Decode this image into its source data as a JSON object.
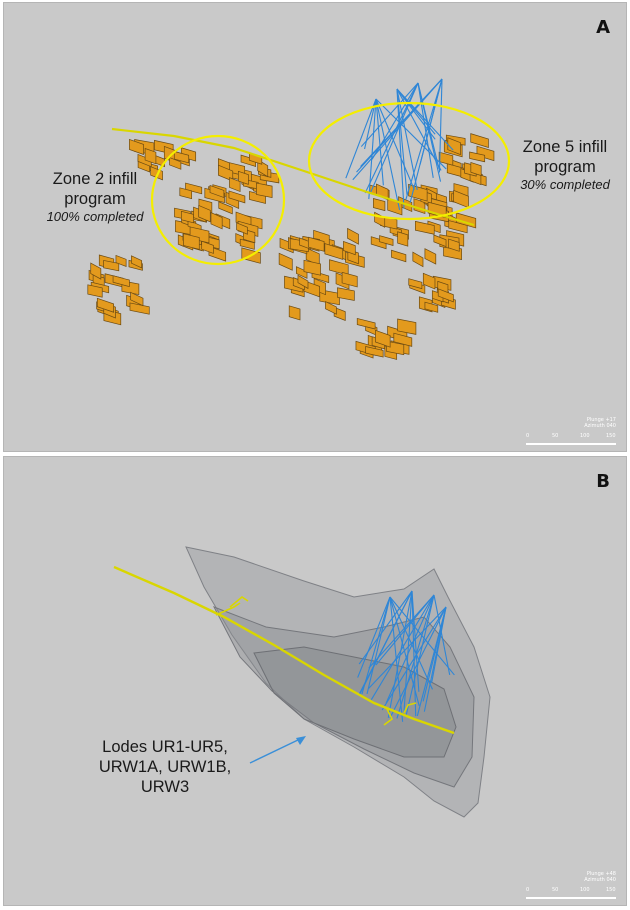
{
  "panel_a": {
    "letter": "A",
    "zone2": {
      "line1": "Zone 2 infill",
      "line2": "program",
      "status": "100% completed"
    },
    "zone5": {
      "line1": "Zone 5 infill",
      "line2": "program",
      "status": "30% completed"
    },
    "orientation": {
      "plunge": "Plunge +17",
      "azimuth": "Azimuth 040"
    },
    "scale_ticks": [
      "0",
      "50",
      "100",
      "150"
    ]
  },
  "panel_b": {
    "letter": "B",
    "lodes": {
      "line1": "Lodes UR1-UR5,",
      "line2": "URW1A, URW1B,",
      "line3": "URW3"
    },
    "orientation": {
      "plunge": "Plunge +48",
      "azimuth": "Azimuth 040"
    },
    "scale_ticks": [
      "0",
      "50",
      "100",
      "150"
    ]
  },
  "colors": {
    "background": "#c9c9c9",
    "lode_orange": "#e39a1d",
    "lode_dark": "#6b4a12",
    "drillhole_blue": "#2f86d6",
    "development_yellow": "#d9d600",
    "ellipse_yellow": "#f4ee00",
    "wireframe_grey": "#8d8f93",
    "arrow_blue": "#3a8fd8"
  }
}
